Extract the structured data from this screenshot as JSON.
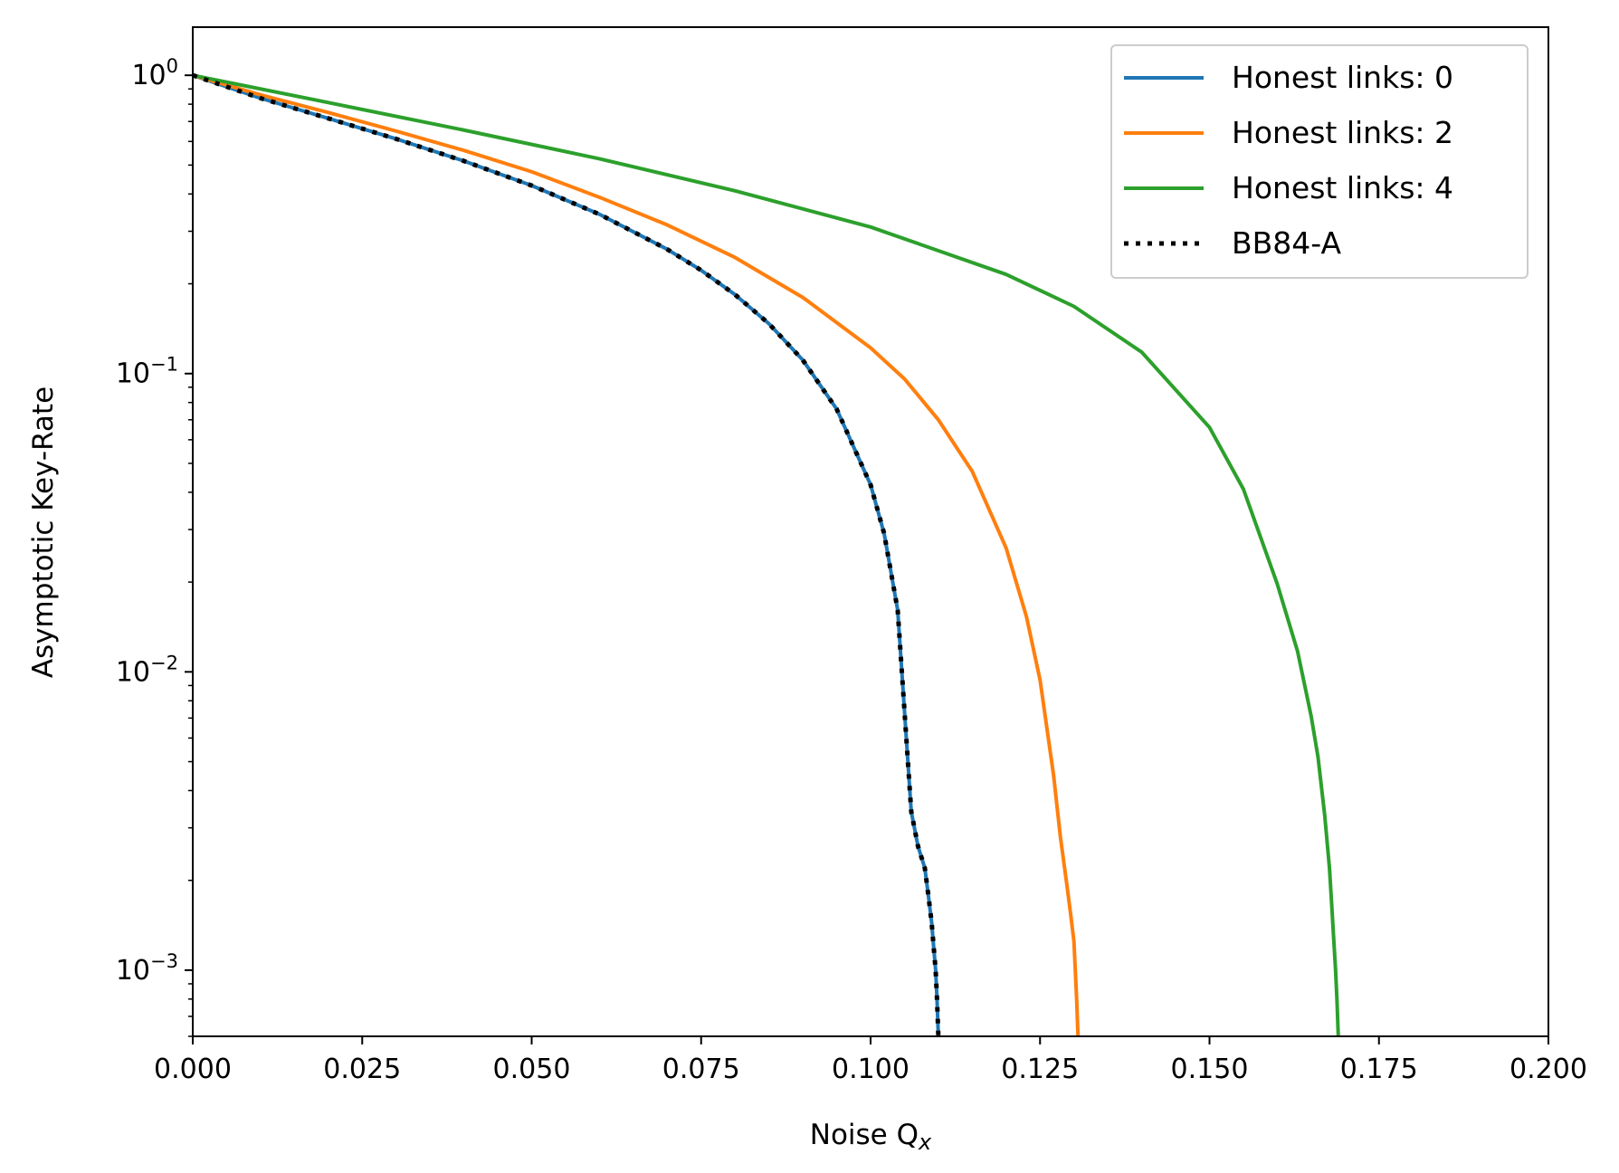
{
  "chart_data": {
    "type": "line",
    "xlabel": "Noise Q",
    "xlabel_subscript": "x",
    "ylabel": "Asymptotic Key-Rate",
    "xlim": [
      0.0,
      0.2
    ],
    "ylim": [
      0.0006,
      1.45
    ],
    "yscale": "log",
    "grid": false,
    "legend_position": "top-right",
    "x_ticks": [
      {
        "value": 0.0,
        "label": "0.000"
      },
      {
        "value": 0.025,
        "label": "0.025"
      },
      {
        "value": 0.05,
        "label": "0.050"
      },
      {
        "value": 0.075,
        "label": "0.075"
      },
      {
        "value": 0.1,
        "label": "0.100"
      },
      {
        "value": 0.125,
        "label": "0.125"
      },
      {
        "value": 0.15,
        "label": "0.150"
      },
      {
        "value": 0.175,
        "label": "0.175"
      },
      {
        "value": 0.2,
        "label": "0.200"
      }
    ],
    "y_ticks": [
      {
        "value": 1,
        "base": "10",
        "exp": "0"
      },
      {
        "value": 0.1,
        "base": "10",
        "exp": "−1"
      },
      {
        "value": 0.01,
        "base": "10",
        "exp": "−2"
      },
      {
        "value": 0.001,
        "base": "10",
        "exp": "−3"
      }
    ],
    "series": [
      {
        "name": "Honest links: 0",
        "color": "#1f77b4",
        "style": "solid",
        "x": [
          0.0,
          0.01,
          0.02,
          0.03,
          0.04,
          0.05,
          0.06,
          0.07,
          0.075,
          0.08,
          0.085,
          0.09,
          0.095,
          0.1,
          0.102,
          0.104,
          0.106,
          0.107,
          0.108,
          0.1085,
          0.109,
          0.1093,
          0.1096,
          0.1098,
          0.11
        ],
        "y": [
          1.0,
          0.838,
          0.717,
          0.612,
          0.516,
          0.427,
          0.342,
          0.261,
          0.222,
          0.184,
          0.147,
          0.111,
          0.076,
          0.0424,
          0.0291,
          0.0161,
          0.0034,
          0.0026,
          0.0022,
          0.0018,
          0.00145,
          0.0012,
          0.001,
          0.0008,
          0.0006
        ]
      },
      {
        "name": "Honest links: 2",
        "color": "#ff7f0e",
        "style": "solid",
        "x": [
          0.0,
          0.01,
          0.02,
          0.03,
          0.04,
          0.05,
          0.06,
          0.07,
          0.08,
          0.09,
          0.1,
          0.105,
          0.11,
          0.115,
          0.12,
          0.123,
          0.125,
          0.127,
          0.128,
          0.129,
          0.1295,
          0.13,
          0.1302,
          0.1304,
          0.1306
        ],
        "y": [
          1.0,
          0.86,
          0.75,
          0.65,
          0.56,
          0.475,
          0.39,
          0.315,
          0.245,
          0.18,
          0.122,
          0.096,
          0.07,
          0.047,
          0.026,
          0.0153,
          0.0094,
          0.0045,
          0.0028,
          0.0019,
          0.00155,
          0.00125,
          0.001,
          0.0008,
          0.0006
        ]
      },
      {
        "name": "Honest links: 4",
        "color": "#2ca02c",
        "style": "solid",
        "x": [
          0.0,
          0.02,
          0.04,
          0.06,
          0.08,
          0.1,
          0.12,
          0.13,
          0.14,
          0.15,
          0.155,
          0.16,
          0.163,
          0.165,
          0.166,
          0.167,
          0.1677,
          0.168,
          0.1683,
          0.1686,
          0.1688,
          0.169
        ],
        "y": [
          1.0,
          0.81,
          0.655,
          0.525,
          0.41,
          0.31,
          0.215,
          0.168,
          0.118,
          0.066,
          0.041,
          0.0197,
          0.0117,
          0.0071,
          0.0052,
          0.0033,
          0.0022,
          0.0017,
          0.0013,
          0.001,
          0.0008,
          0.0006
        ]
      },
      {
        "name": "BB84-A",
        "color": "#000000",
        "style": "dotted",
        "x": [
          0.0,
          0.01,
          0.02,
          0.03,
          0.04,
          0.05,
          0.06,
          0.07,
          0.075,
          0.08,
          0.085,
          0.09,
          0.095,
          0.1,
          0.102,
          0.104,
          0.106,
          0.107,
          0.108,
          0.1085,
          0.109,
          0.1093,
          0.1096,
          0.1098,
          0.11
        ],
        "y": [
          1.0,
          0.838,
          0.717,
          0.612,
          0.516,
          0.427,
          0.342,
          0.261,
          0.222,
          0.184,
          0.147,
          0.111,
          0.076,
          0.0424,
          0.0291,
          0.0161,
          0.0034,
          0.0026,
          0.0022,
          0.0018,
          0.00145,
          0.0012,
          0.001,
          0.0008,
          0.0006
        ]
      }
    ]
  }
}
